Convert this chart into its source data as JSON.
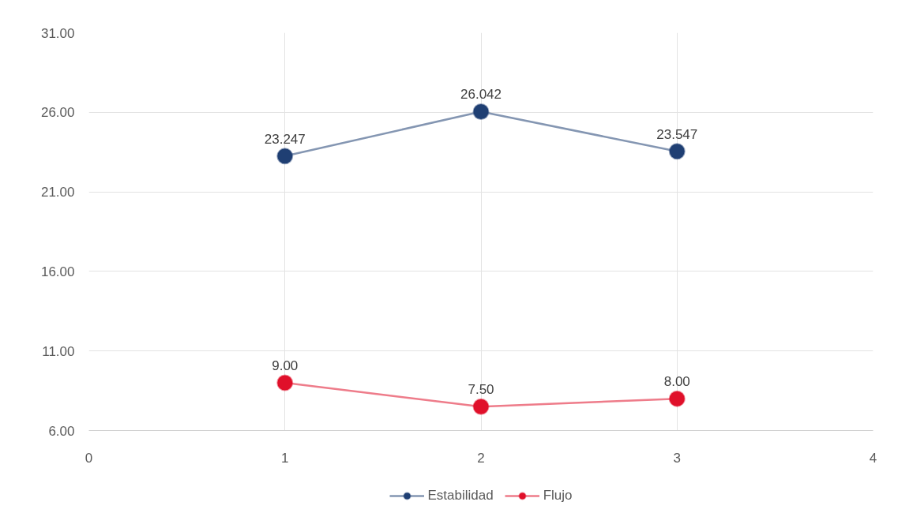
{
  "chart_data": {
    "type": "line",
    "x": [
      1,
      2,
      3
    ],
    "xlim": [
      0,
      4
    ],
    "xticks": [
      0,
      1,
      2,
      3,
      4
    ],
    "ylim": [
      6,
      31
    ],
    "yticks": [
      {
        "value": 6,
        "label": "6.00"
      },
      {
        "value": 11,
        "label": "11.00"
      },
      {
        "value": 16,
        "label": "16.00"
      },
      {
        "value": 21,
        "label": "21.00"
      },
      {
        "value": 26,
        "label": "26.00"
      },
      {
        "value": 31,
        "label": "31.00"
      }
    ],
    "grid": true,
    "legend": "bottom",
    "marker": "circle",
    "line_style": "solid",
    "series": [
      {
        "name": "Estabilidad",
        "color": "#1f3f73",
        "values": [
          23.247,
          26.042,
          23.547
        ],
        "value_labels": [
          "23.247",
          "26.042",
          "23.547"
        ]
      },
      {
        "name": "Flujo",
        "color": "#e0102a",
        "values": [
          9,
          7.5,
          8
        ],
        "value_labels": [
          "9.00",
          "7.50",
          "8.00"
        ]
      }
    ]
  }
}
